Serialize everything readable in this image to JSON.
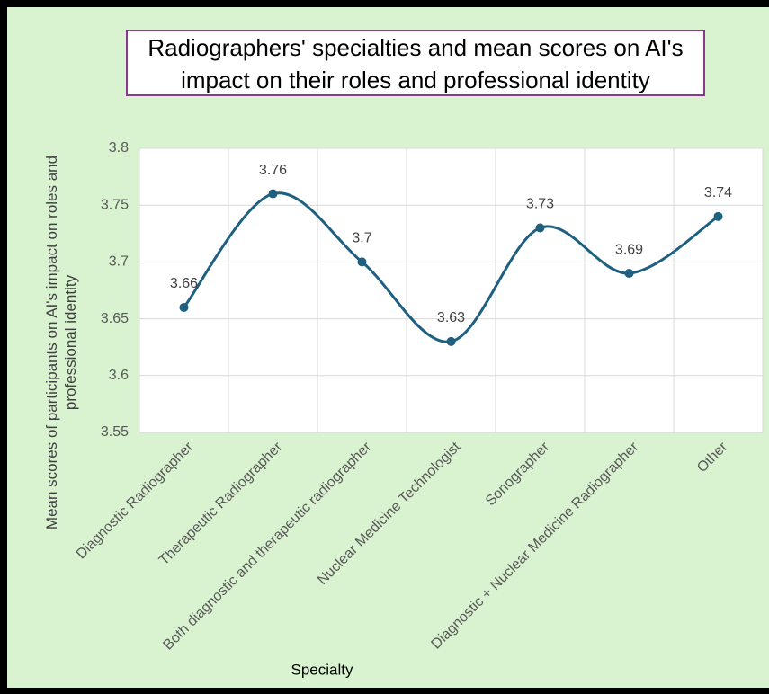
{
  "chart_data": {
    "type": "line",
    "title": "Radiographers' specialties and mean scores on AI's impact on their roles and professional identity",
    "xlabel": "Specialty",
    "ylabel": "Mean scores of participants on AI's impact on roles and professional identity",
    "categories": [
      "Diagnostic Radiographer",
      "Therapeutic Radiographer",
      "Both diagnostic and therapeutic radiographer",
      "Nuclear Medicine Technologist",
      "Sonographer",
      "Diagnostic + Nuclear Medicine Radiographer",
      "Other"
    ],
    "values": [
      3.66,
      3.76,
      3.7,
      3.63,
      3.73,
      3.69,
      3.74
    ],
    "color": "#1f5f7f",
    "smooth": true,
    "ylim": [
      3.55,
      3.8
    ],
    "yticks": [
      3.55,
      3.6,
      3.65,
      3.7,
      3.75,
      3.8
    ],
    "grid": true
  }
}
